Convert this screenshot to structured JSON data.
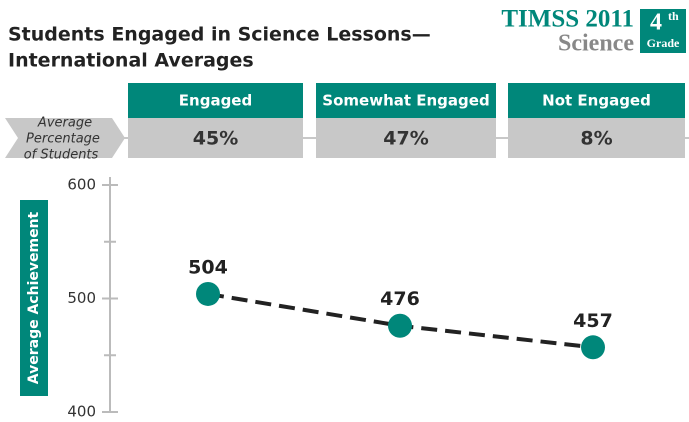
{
  "chart_data": {
    "type": "line",
    "title_lines": [
      "Students Engaged in Science Lessons—",
      "International Averages"
    ],
    "brand": {
      "name": "TIMSS 2011",
      "subject": "Science",
      "grade_number": "4",
      "grade_suffix": "th",
      "grade_word": "Grade"
    },
    "row_label_lines": [
      "Average",
      "Percentage",
      "of Students"
    ],
    "categories": [
      "Engaged",
      "Somewhat Engaged",
      "Not Engaged"
    ],
    "percentages": [
      45,
      47,
      8
    ],
    "percentage_labels": [
      "45%",
      "47%",
      "8%"
    ],
    "y_label": "Average Achievement",
    "values": [
      504,
      476,
      457
    ],
    "color": "#00877a",
    "line_color": "#222222",
    "ylim": [
      400,
      600
    ],
    "yticks": [
      400,
      500,
      600
    ],
    "minor_yticks": [
      450,
      550
    ]
  }
}
